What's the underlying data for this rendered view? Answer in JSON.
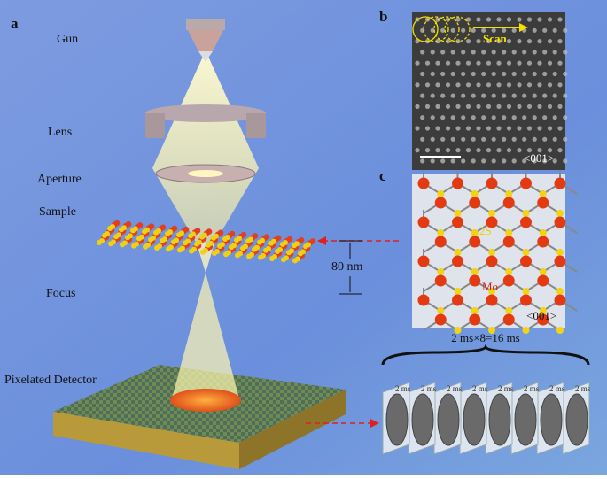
{
  "panel_a": {
    "label": "a",
    "gun": "Gun",
    "lens": "Lens",
    "aperture": "Aperture",
    "sample": "Sample",
    "focus": "Focus",
    "detector": "Pixelated Detector",
    "distance": "80 nm"
  },
  "panel_b": {
    "label": "b",
    "scan": "Scan",
    "orientation": "<001>"
  },
  "panel_c": {
    "label": "c",
    "sulfur": "2S",
    "molybdenum": "Mo",
    "orientation": "<001>"
  },
  "frames": {
    "total": "2 ms×8=16 ms",
    "labels": [
      "2 ms",
      "2 ms",
      "2 ms",
      "2 ms",
      "2 ms",
      "2 ms",
      "2 ms",
      "2 ms"
    ]
  }
}
